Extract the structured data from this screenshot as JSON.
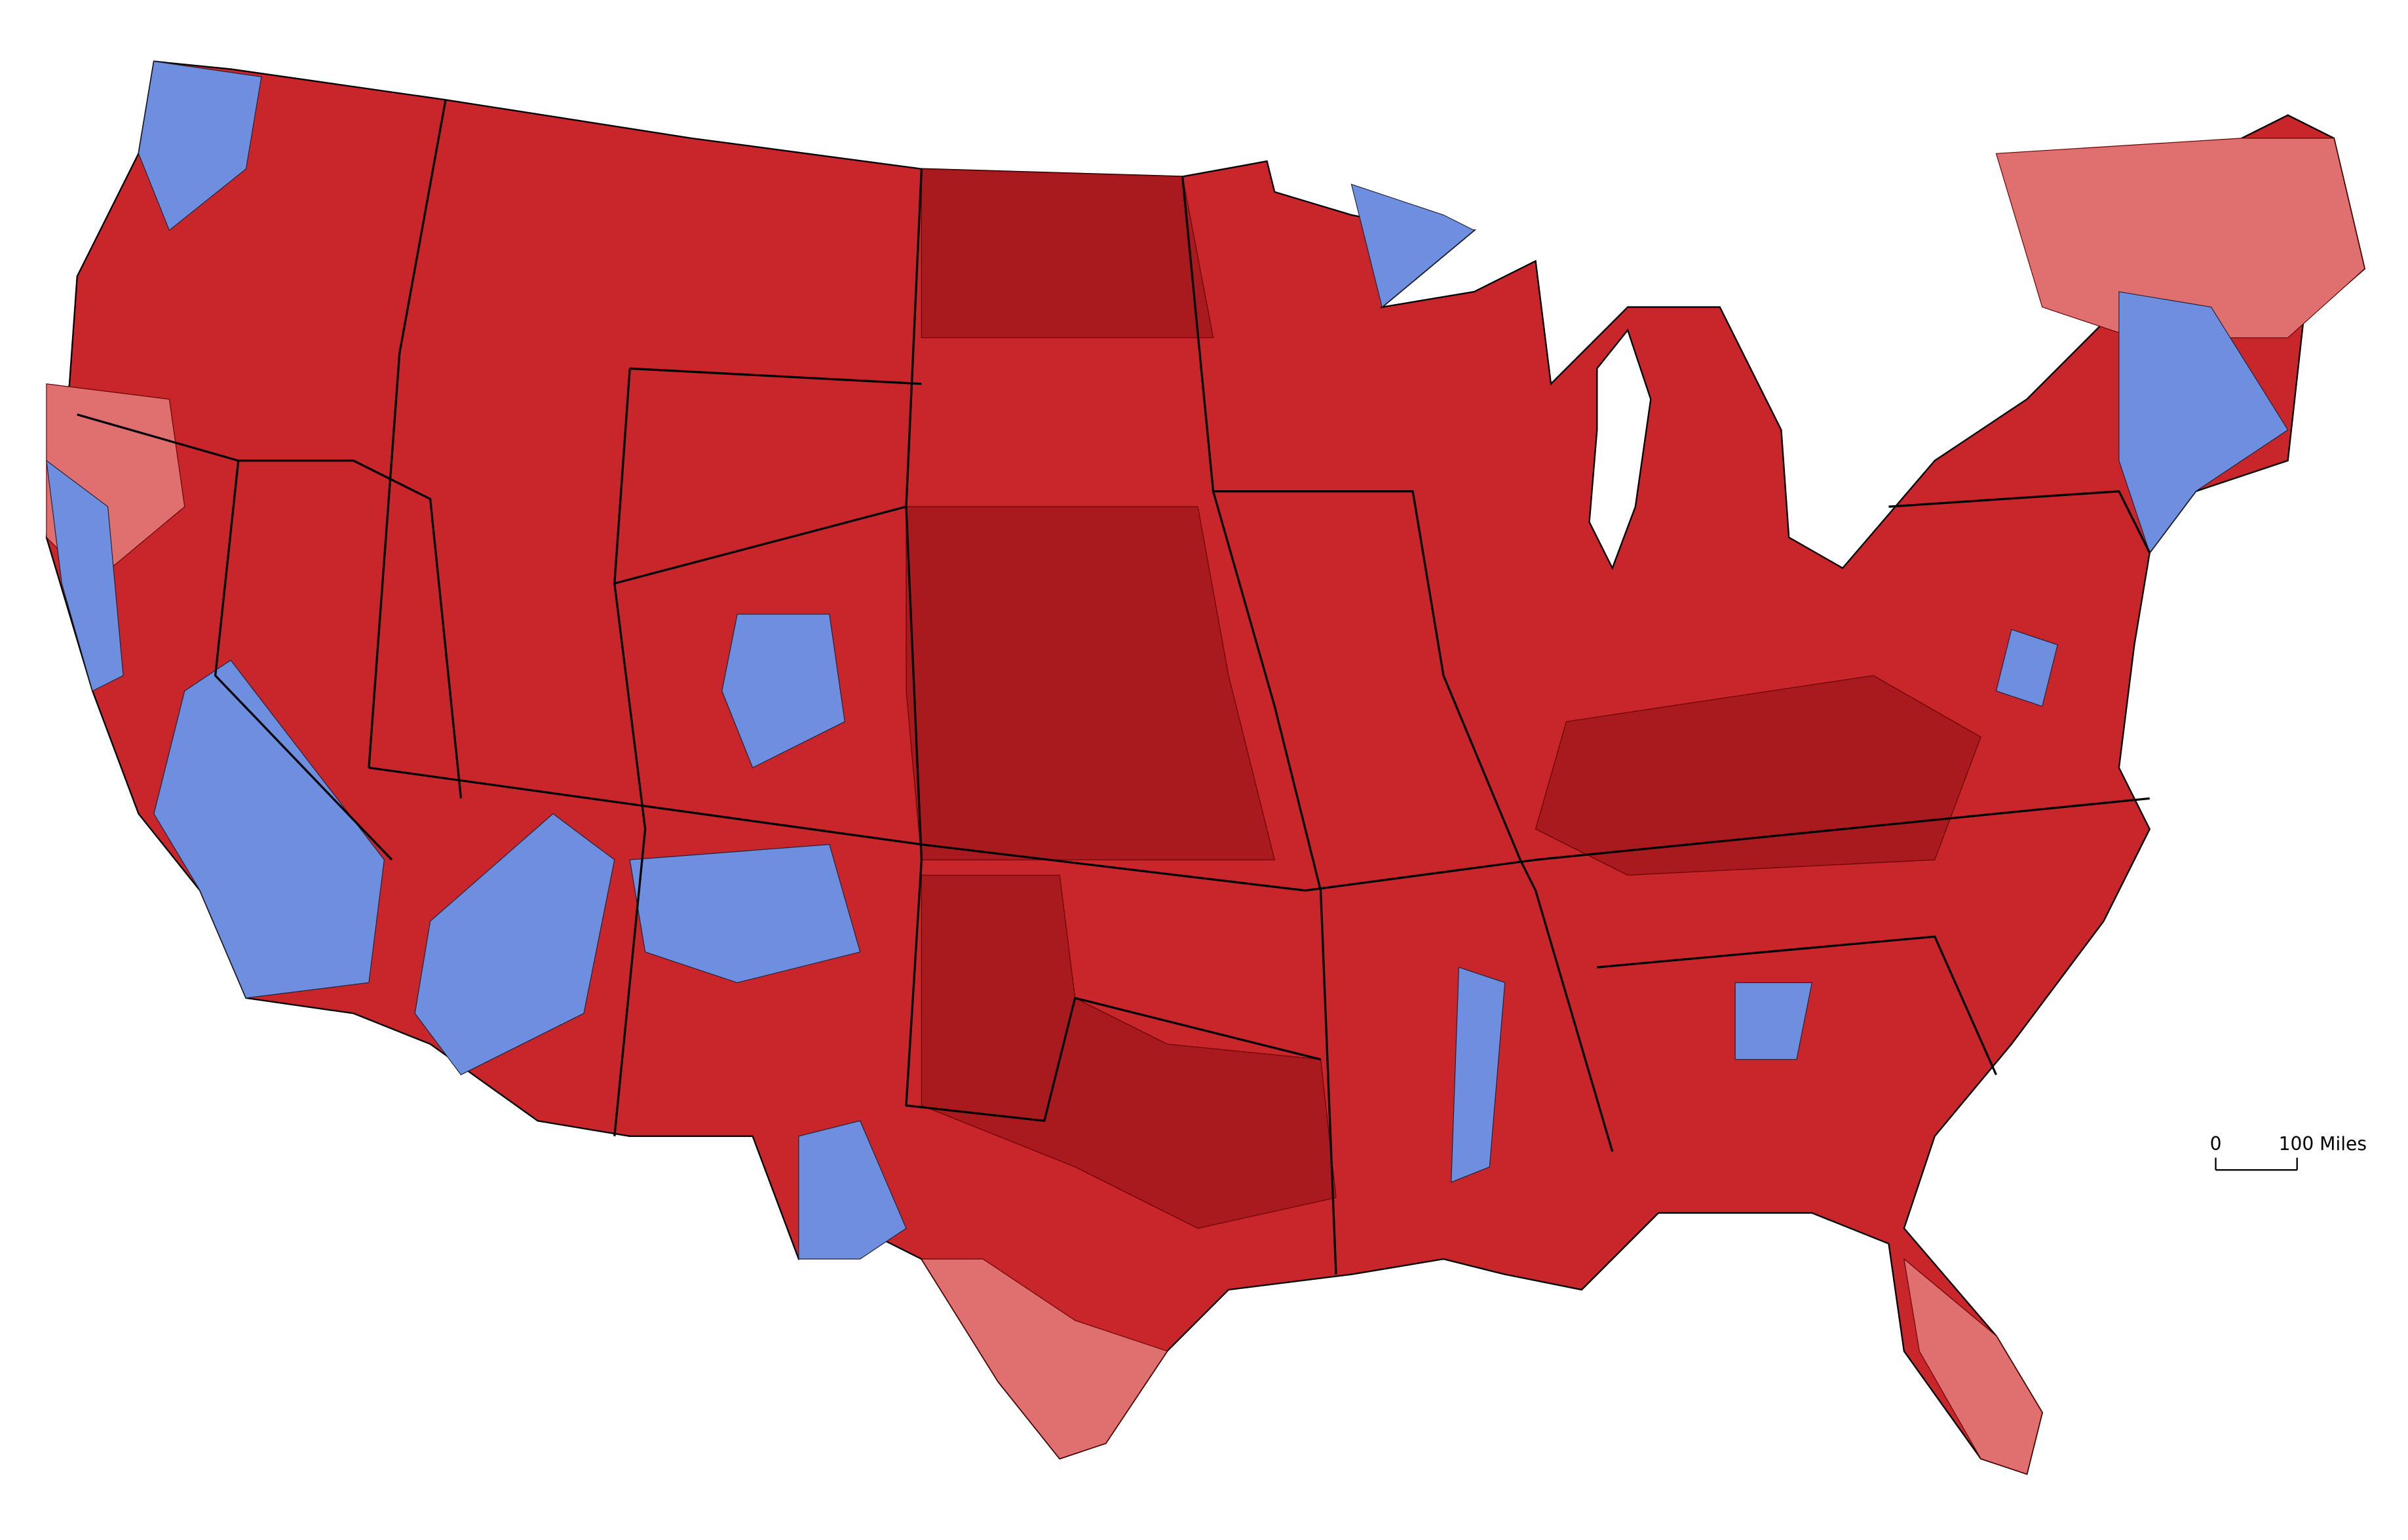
{
  "scale_bar": {
    "start_label": "0",
    "end_label": "100 Miles"
  }
}
